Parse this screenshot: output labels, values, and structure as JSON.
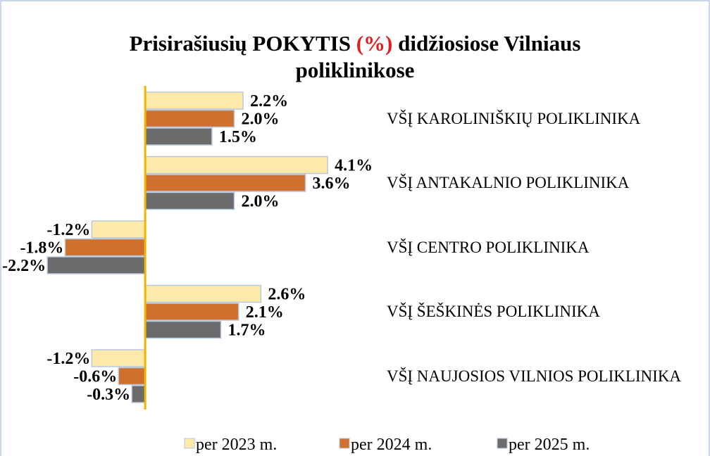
{
  "chart_data": {
    "type": "bar",
    "orientation": "horizontal",
    "title": [
      "Prisirašiusių POKYTIS",
      "(%)",
      "didžiosiose Vilniaus",
      "poliklinikose"
    ],
    "title_highlight_color": "#e02020",
    "categories": [
      "VŠĮ KAROLINIŠKIŲ POLIKLINIKA",
      "VŠĮ ANTAKALNIO POLIKLINIKA",
      "VŠĮ CENTRO POLIKLINIKA",
      "VŠĮ ŠEŠKINĖS POLIKLINIKA",
      "VŠĮ NAUJOSIOS VILNIOS POLIKLINIKA"
    ],
    "series": [
      {
        "name": "per 2023 m.",
        "color": "#fde9a8",
        "values": [
          2.2,
          4.1,
          -1.2,
          2.6,
          -1.2
        ],
        "value_labels": [
          "2.2%",
          "4.1%",
          "-1.2%",
          "2.6%",
          "-1.2%"
        ]
      },
      {
        "name": "per 2024 m.",
        "color": "#d0702e",
        "values": [
          2.0,
          3.6,
          -1.8,
          2.1,
          -0.6
        ],
        "value_labels": [
          "2.0%",
          "3.6%",
          "-1.8%",
          "2.1%",
          "-0.6%"
        ]
      },
      {
        "name": "per 2025 m.",
        "color": "#6b6b6b",
        "values": [
          1.5,
          2.0,
          -2.2,
          1.7,
          -0.3
        ],
        "value_labels": [
          "1.5%",
          "2.0%",
          "-2.2%",
          "1.7%",
          "-0.3%"
        ]
      }
    ],
    "xlim": [
      -3.2,
      5.0
    ],
    "legend": "bottom"
  }
}
